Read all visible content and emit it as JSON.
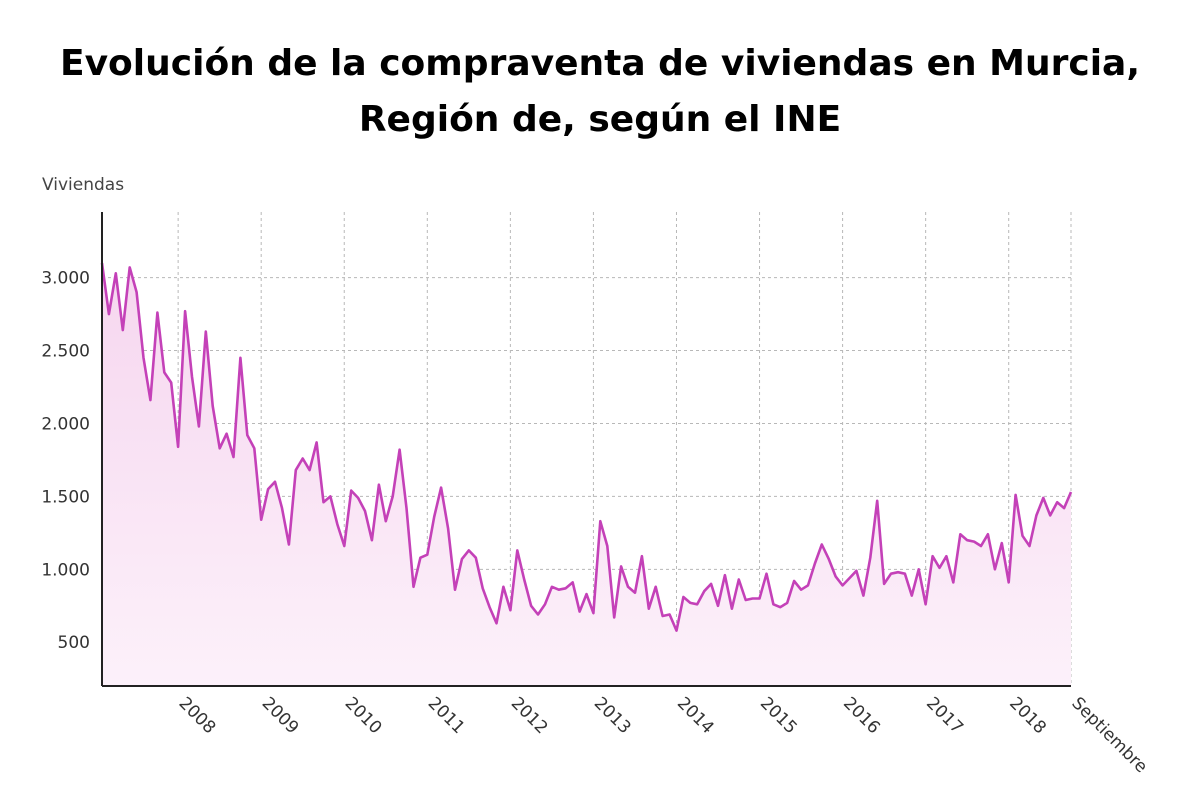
{
  "chart_data": {
    "type": "area",
    "title_line1": "Evolución de la compraventa de viviendas en Murcia,",
    "title_line2": "Región de, según el INE",
    "ylabel": "Viviendas",
    "xlabel": "",
    "ylim": [
      200,
      3450
    ],
    "yticks": [
      500,
      1000,
      1500,
      2000,
      2500,
      3000
    ],
    "ytick_labels": [
      "500",
      "1.000",
      "1.500",
      "2.000",
      "2.500",
      "3.000"
    ],
    "xlim": [
      0,
      140
    ],
    "xticks": [
      {
        "label": "2008",
        "x": 11
      },
      {
        "label": "2009",
        "x": 23
      },
      {
        "label": "2010",
        "x": 35
      },
      {
        "label": "2011",
        "x": 47
      },
      {
        "label": "2012",
        "x": 59
      },
      {
        "label": "2013",
        "x": 71
      },
      {
        "label": "2014",
        "x": 83
      },
      {
        "label": "2015",
        "x": 95
      },
      {
        "label": "2016",
        "x": 107
      },
      {
        "label": "2017",
        "x": 119
      },
      {
        "label": "2018",
        "x": 131
      },
      {
        "label": "Septiembre",
        "x": 140
      }
    ],
    "grid": true,
    "colors": {
      "line": "#c441b8",
      "fill_top": "#f6d6ef",
      "fill_bottom": "#fcf1fa",
      "grid": "#b8b8b8",
      "axis": "#222222"
    },
    "series": [
      {
        "values": [
          3100,
          2750,
          3030,
          2640,
          3070,
          2900,
          2450,
          2160,
          2760,
          2350,
          2280,
          1840,
          2770,
          2320,
          1980,
          2630,
          2120,
          1830,
          1930,
          1770,
          2450,
          1920,
          1830,
          1340,
          1550,
          1600,
          1420,
          1170,
          1680,
          1760,
          1680,
          1870,
          1460,
          1500,
          1310,
          1160,
          1540,
          1490,
          1400,
          1200,
          1580,
          1330,
          1500,
          1820,
          1420,
          880,
          1080,
          1100,
          1360,
          1560,
          1280,
          860,
          1070,
          1130,
          1080,
          870,
          740,
          630,
          880,
          720,
          1130,
          930,
          750,
          690,
          760,
          880,
          860,
          870,
          910,
          710,
          830,
          700,
          1330,
          1160,
          670,
          1020,
          880,
          840,
          1090,
          730,
          880,
          680,
          690,
          580,
          810,
          770,
          760,
          850,
          900,
          750,
          960,
          730,
          930,
          790,
          800,
          800,
          970,
          760,
          740,
          770,
          920,
          860,
          890,
          1040,
          1170,
          1070,
          950,
          890,
          940,
          990,
          820,
          1080,
          1470,
          900,
          970,
          980,
          970,
          820,
          1000,
          760,
          1090,
          1010,
          1090,
          910,
          1240,
          1200,
          1190,
          1160,
          1240,
          1000,
          1180,
          910,
          1510,
          1230,
          1160,
          1370,
          1490,
          1370,
          1460,
          1420,
          1530
        ]
      }
    ]
  }
}
